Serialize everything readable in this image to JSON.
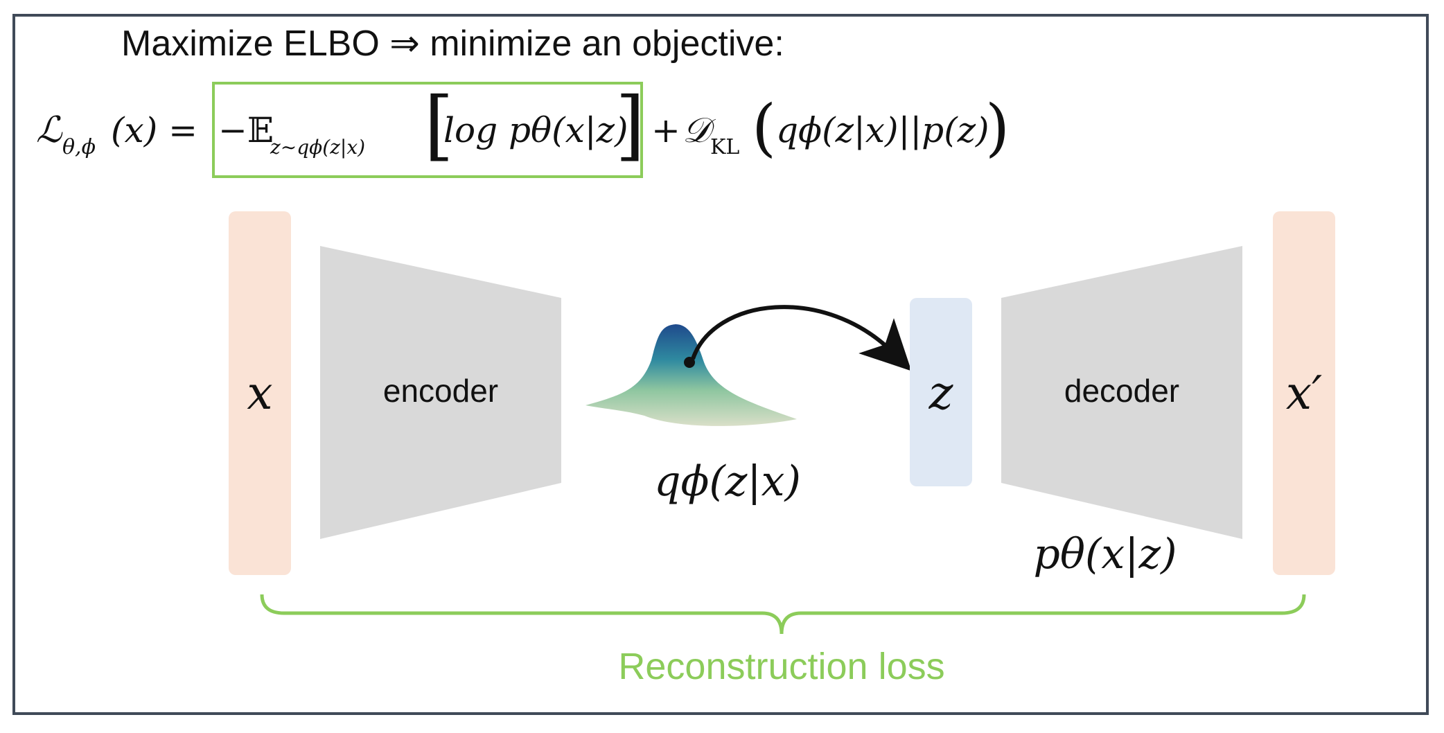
{
  "header": {
    "title": "Maximize ELBO ⇒ minimize an objective:"
  },
  "equation": {
    "lhs": "ℒ",
    "lhs_sub": "θ,ϕ",
    "lhs_arg": "(x) =",
    "recon_neg": "−𝔼",
    "recon_sub": "z∼qϕ(z|x)",
    "recon_term": "log pθ(x|z)",
    "plus": "+",
    "kl": "𝒟",
    "kl_sub": "KL",
    "kl_term": "qϕ(z|x)||p(z)"
  },
  "diagram": {
    "input_label": "x",
    "encoder_label": "encoder",
    "posterior_label": "qϕ(z|x)",
    "latent_label": "z",
    "decoder_label": "decoder",
    "likelihood_label": "pθ(x|z)",
    "output_label": "x′",
    "brace_label": "Reconstruction loss"
  },
  "colors": {
    "frame": "#404a58",
    "io_block": "#fae3d6",
    "latent_block": "#dfe8f4",
    "network_block": "#d9d9d9",
    "highlight_green": "#8ccc5a",
    "label_text": "#111111"
  }
}
